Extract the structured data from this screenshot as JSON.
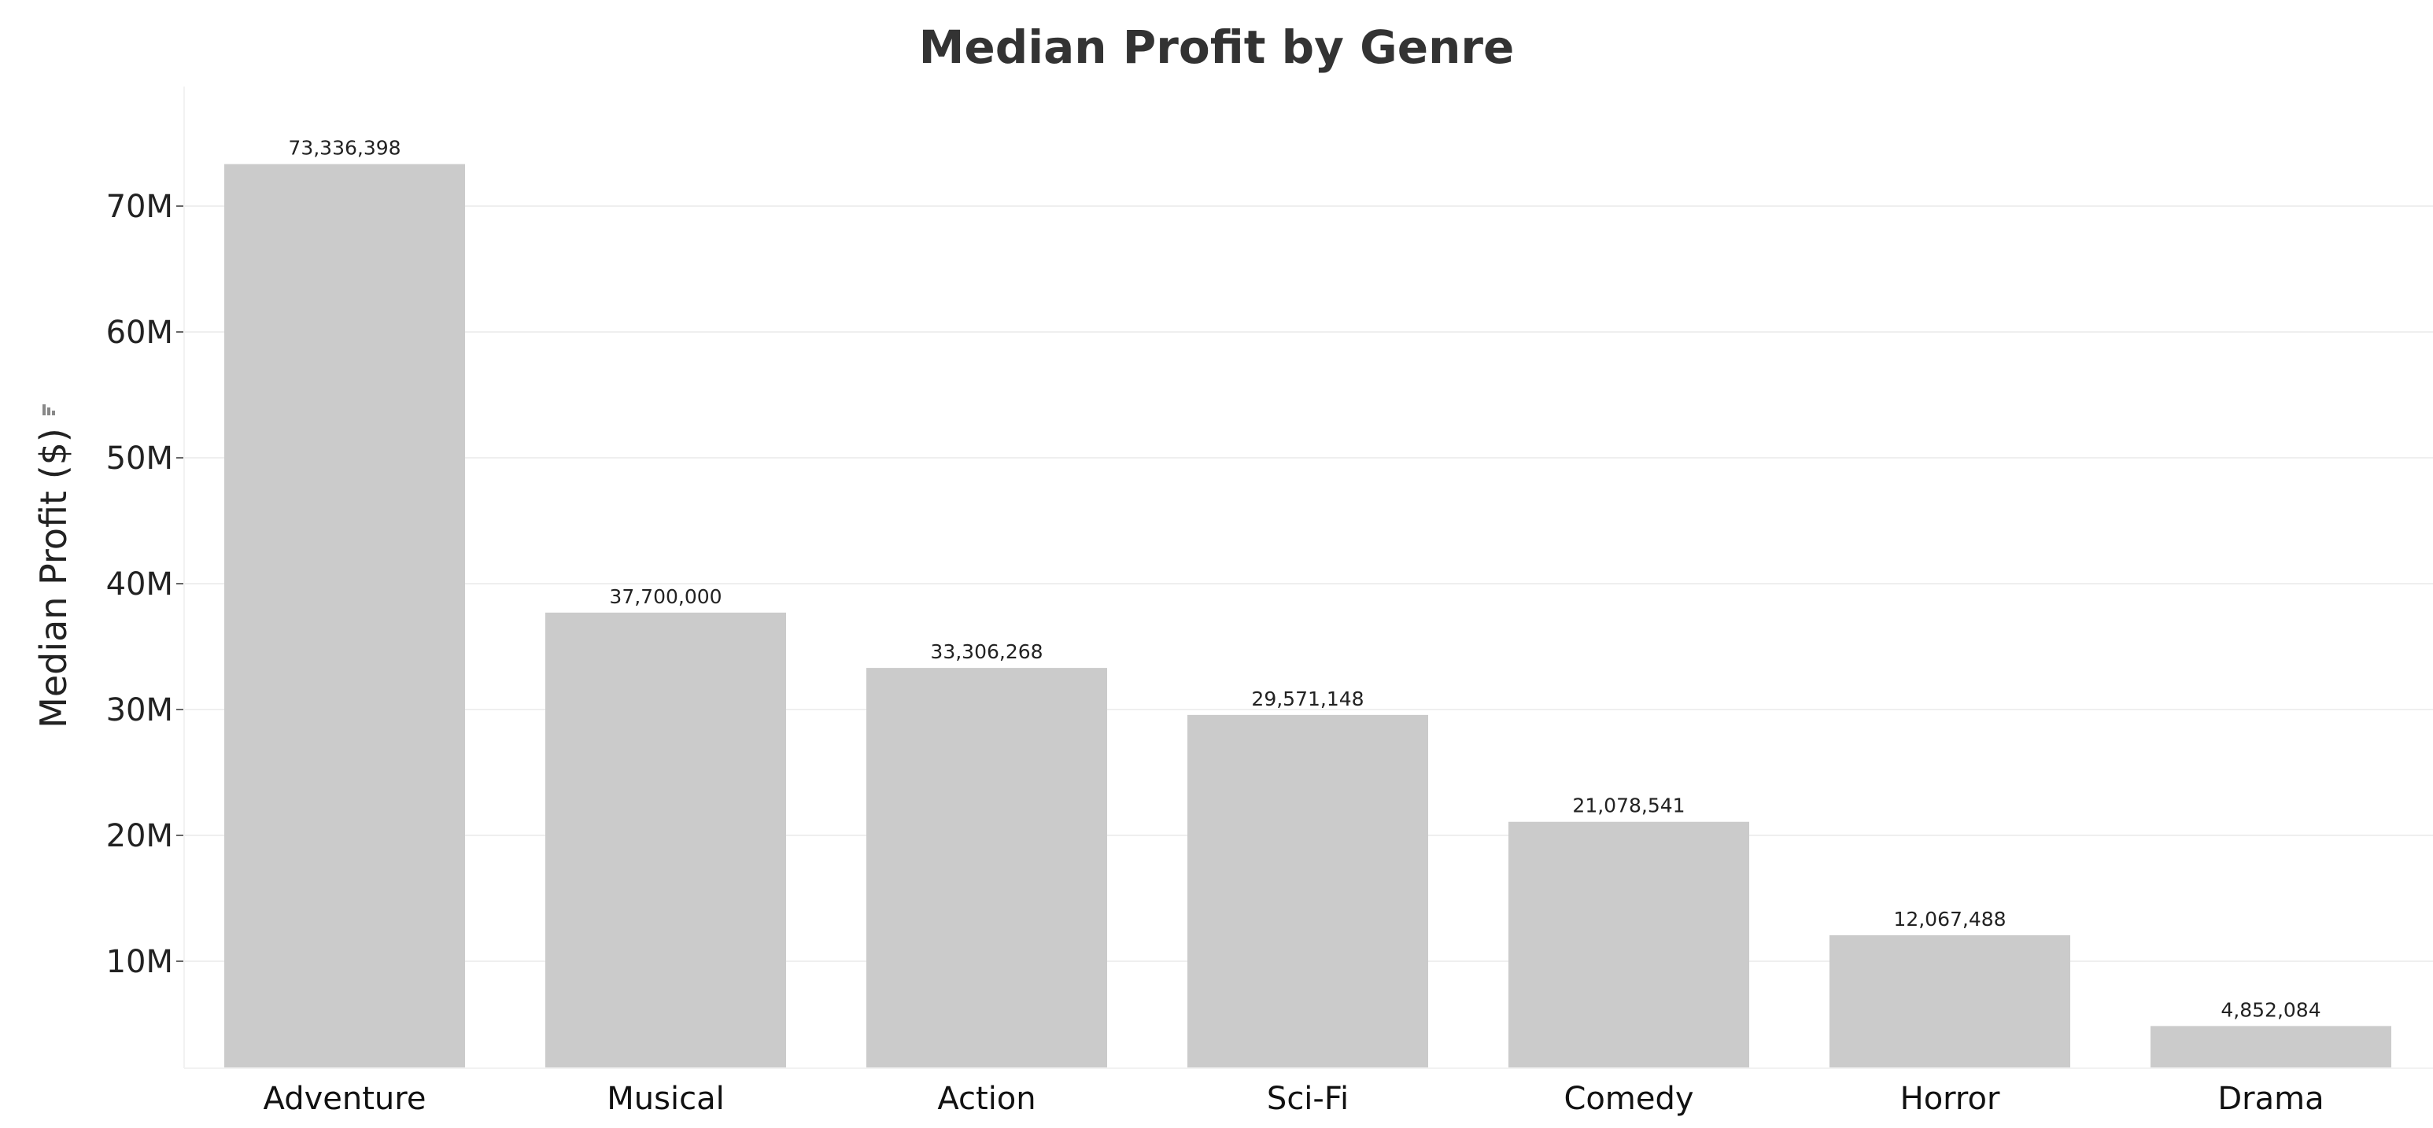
{
  "chart_data": {
    "type": "bar",
    "title": "Median Profit by Genre",
    "xlabel": "",
    "ylabel": "Median Profit ($)",
    "categories": [
      "Adventure",
      "Musical",
      "Action",
      "Sci-Fi",
      "Comedy",
      "Horror",
      "Drama"
    ],
    "values": [
      73336398,
      37700000,
      33306268,
      29571148,
      21078541,
      12067488,
      4852084
    ],
    "data_labels": [
      "73,336,398",
      "37,700,000",
      "33,306,268",
      "29,571,148",
      "21,078,541",
      "12,067,488",
      "4,852,084"
    ],
    "y_ticks": [
      10000000,
      20000000,
      30000000,
      40000000,
      50000000,
      60000000,
      70000000
    ],
    "y_tick_labels": [
      "10M",
      "20M",
      "30M",
      "40M",
      "50M",
      "60M",
      "70M"
    ],
    "ylim": [
      1500000,
      79500000
    ],
    "grid": true,
    "legend": "none",
    "colors": {
      "bar": "#cbcbcb"
    }
  }
}
